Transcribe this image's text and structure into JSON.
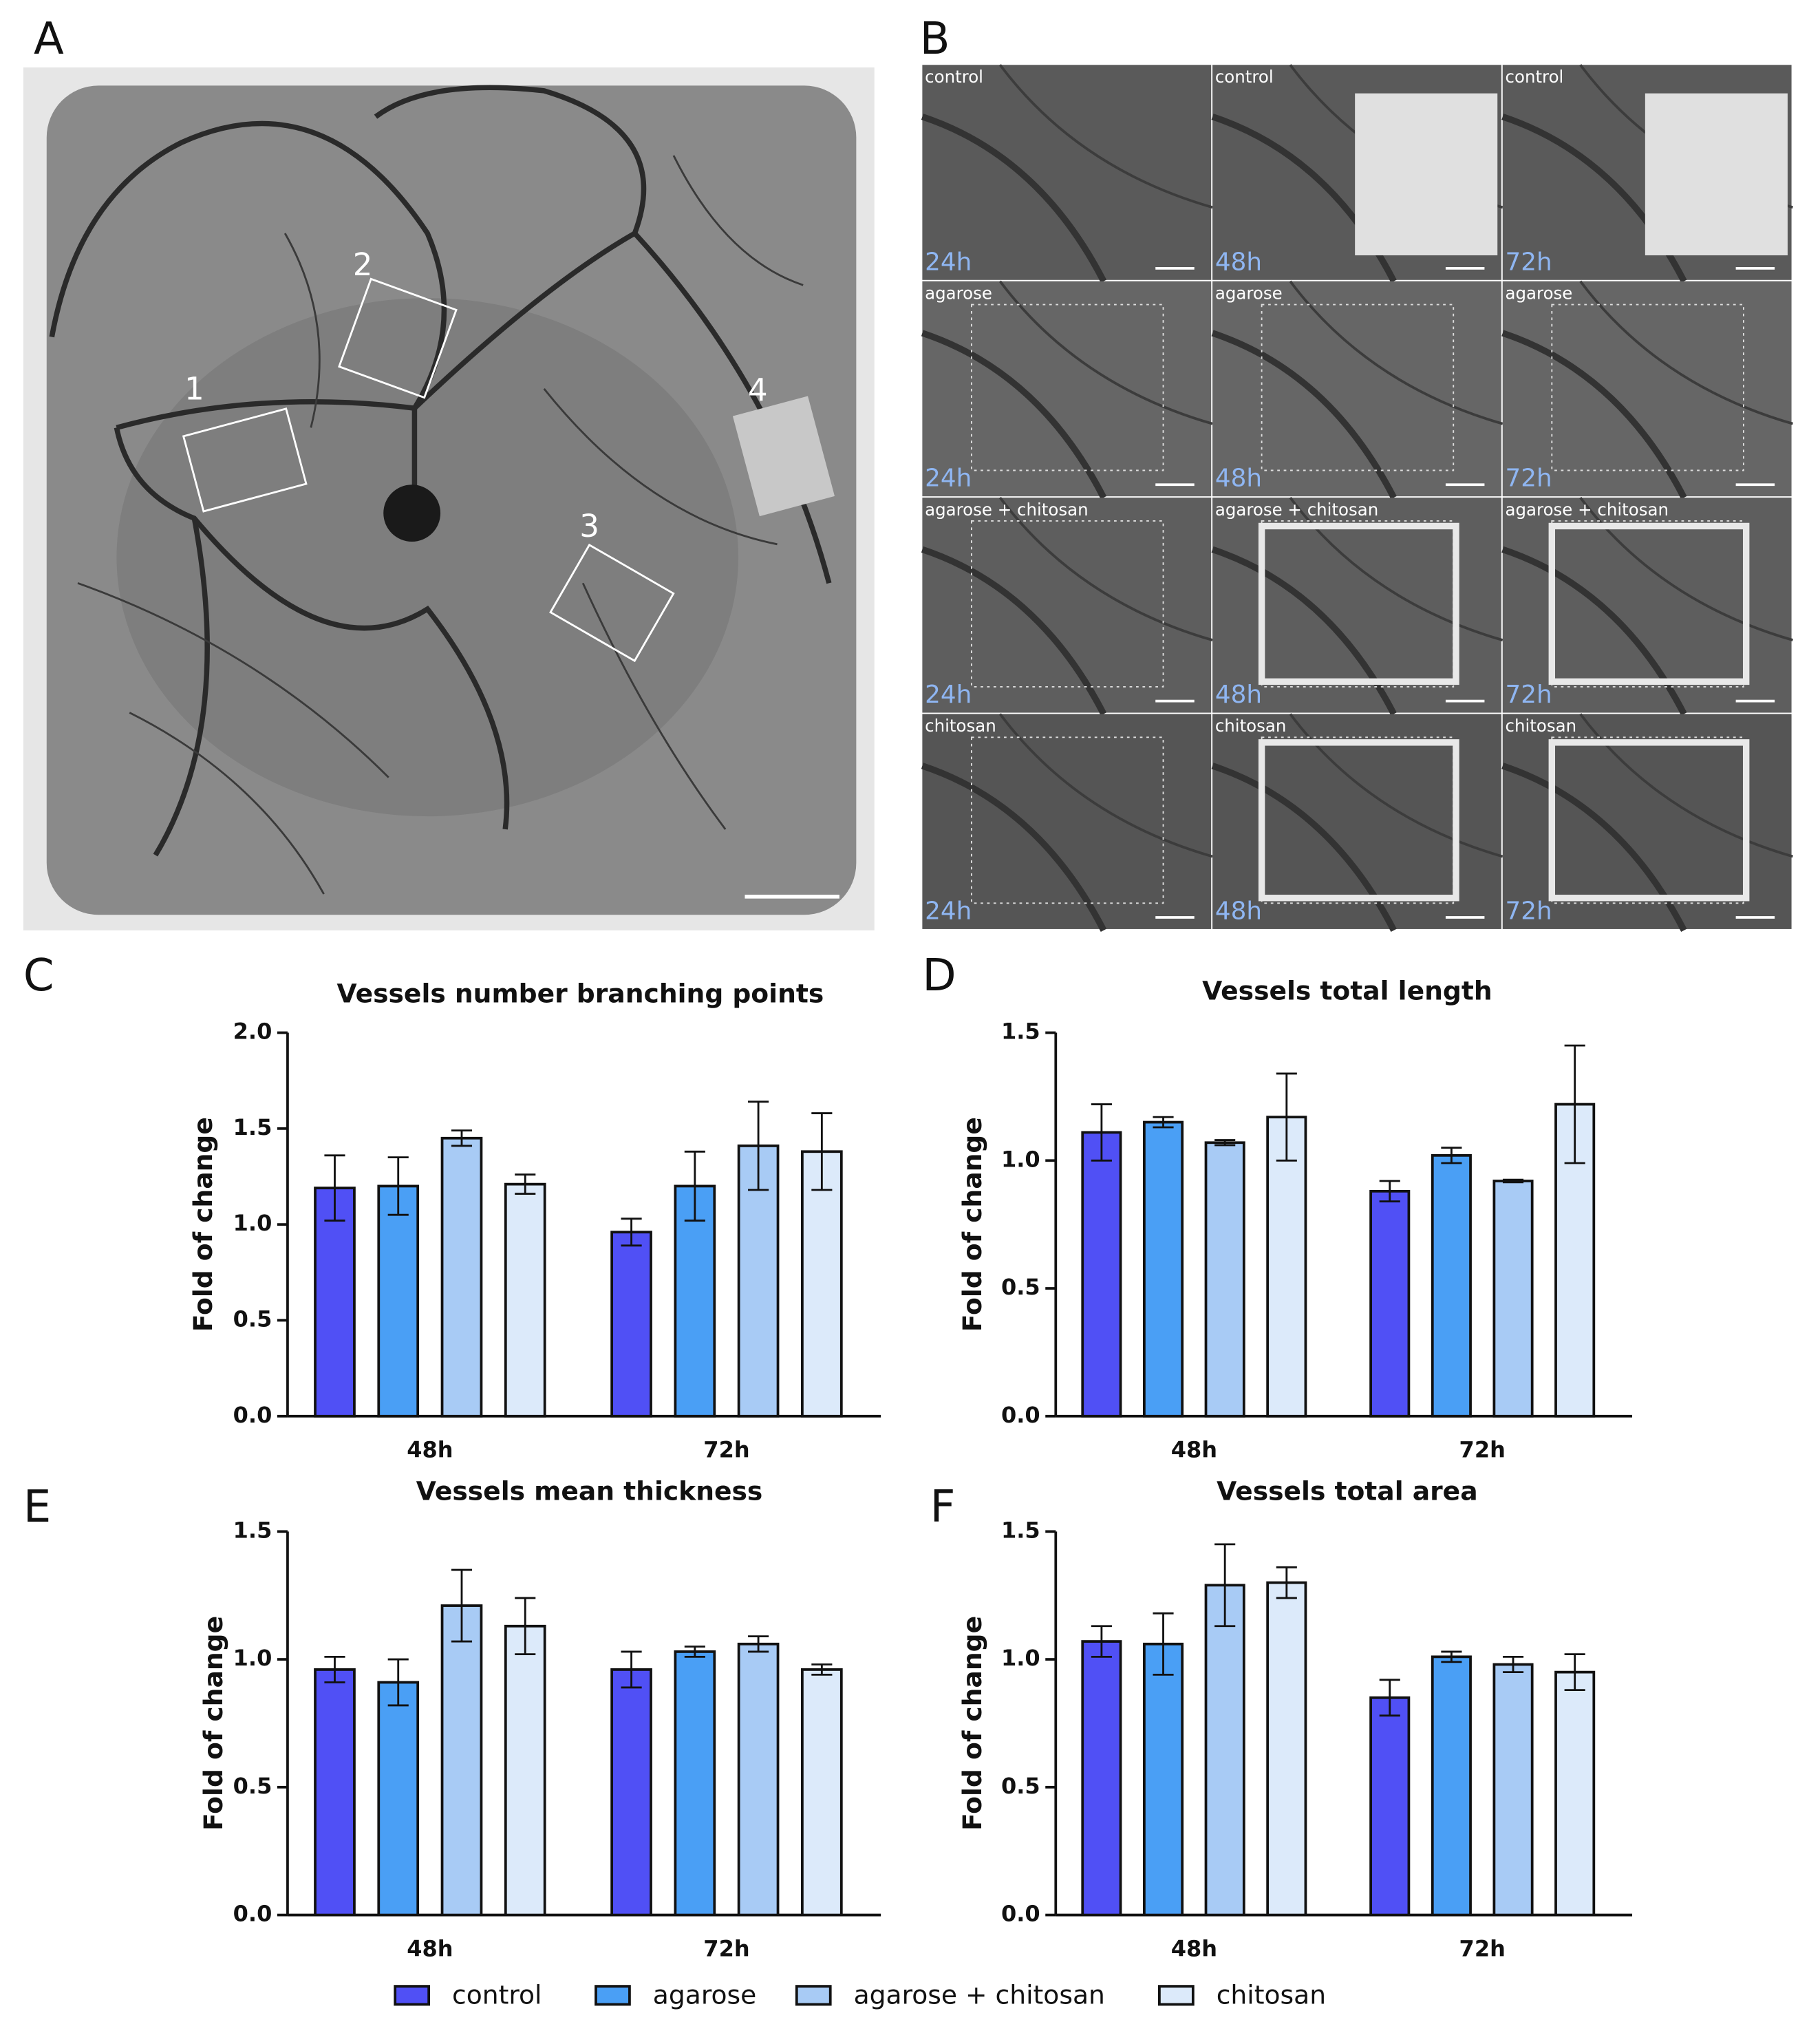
{
  "panel_labels": [
    "A",
    "B",
    "C",
    "D",
    "E",
    "F"
  ],
  "photo_a": {
    "region_labels": [
      "1",
      "2",
      "3",
      "4"
    ]
  },
  "photo_b": {
    "treatments": [
      "control",
      "agarose",
      "agarose + chitosan",
      "chitosan"
    ],
    "times": [
      "24h",
      "48h",
      "72h"
    ]
  },
  "legend": [
    {
      "name": "control",
      "color": "#5050f5"
    },
    {
      "name": "agarose",
      "color": "#4a9ff5"
    },
    {
      "name": "agarose + chitosan",
      "color": "#a8cbf5"
    },
    {
      "name": "chitosan",
      "color": "#dceafa"
    }
  ],
  "chart_data": [
    {
      "type": "bar",
      "title": "Vessels number branching points",
      "ylabel": "Fold of change",
      "categories": [
        "48h",
        "72h"
      ],
      "ylim": [
        0,
        2
      ],
      "yticks": [
        {
          "value": 0,
          "label": "0.0"
        },
        {
          "value": 0.5,
          "label": "0.5"
        },
        {
          "value": 1,
          "label": "1.0"
        },
        {
          "value": 1.5,
          "label": "1.5"
        },
        {
          "value": 2,
          "label": "2.0"
        }
      ],
      "series": [
        {
          "values": [
            1.19,
            0.96
          ],
          "errors": [
            0.17,
            0.07
          ]
        },
        {
          "values": [
            1.2,
            1.2
          ],
          "errors": [
            0.15,
            0.18
          ]
        },
        {
          "values": [
            1.45,
            1.41
          ],
          "errors": [
            0.04,
            0.23
          ]
        },
        {
          "values": [
            1.21,
            1.38
          ],
          "errors": [
            0.05,
            0.2
          ]
        }
      ]
    },
    {
      "type": "bar",
      "title": "Vessels total length",
      "ylabel": "Fold of change",
      "categories": [
        "48h",
        "72h"
      ],
      "ylim": [
        0,
        1.5
      ],
      "yticks": [
        {
          "value": 0,
          "label": "0.0"
        },
        {
          "value": 0.5,
          "label": "0.5"
        },
        {
          "value": 1,
          "label": "1.0"
        },
        {
          "value": 1.5,
          "label": "1.5"
        }
      ],
      "series": [
        {
          "values": [
            1.11,
            0.88
          ],
          "errors": [
            0.11,
            0.04
          ]
        },
        {
          "values": [
            1.15,
            1.02
          ],
          "errors": [
            0.02,
            0.03
          ]
        },
        {
          "values": [
            1.07,
            0.92
          ],
          "errors": [
            0.01,
            0.005
          ]
        },
        {
          "values": [
            1.17,
            1.22
          ],
          "errors": [
            0.17,
            0.23
          ]
        }
      ]
    },
    {
      "type": "bar",
      "title": "Vessels mean thickness",
      "ylabel": "Fold of change",
      "categories": [
        "48h",
        "72h"
      ],
      "ylim": [
        0,
        1.5
      ],
      "yticks": [
        {
          "value": 0,
          "label": "0.0"
        },
        {
          "value": 0.5,
          "label": "0.5"
        },
        {
          "value": 1,
          "label": "1.0"
        },
        {
          "value": 1.5,
          "label": "1.5"
        }
      ],
      "series": [
        {
          "values": [
            0.96,
            0.96
          ],
          "errors": [
            0.05,
            0.07
          ]
        },
        {
          "values": [
            0.91,
            1.03
          ],
          "errors": [
            0.09,
            0.02
          ]
        },
        {
          "values": [
            1.21,
            1.06
          ],
          "errors": [
            0.14,
            0.03
          ]
        },
        {
          "values": [
            1.13,
            0.96
          ],
          "errors": [
            0.11,
            0.02
          ]
        }
      ]
    },
    {
      "type": "bar",
      "title": "Vessels total area",
      "ylabel": "Fold of change",
      "categories": [
        "48h",
        "72h"
      ],
      "ylim": [
        0,
        1.5
      ],
      "yticks": [
        {
          "value": 0,
          "label": "0.0"
        },
        {
          "value": 0.5,
          "label": "0.5"
        },
        {
          "value": 1,
          "label": "1.0"
        },
        {
          "value": 1.5,
          "label": "1.5"
        }
      ],
      "series": [
        {
          "values": [
            1.07,
            0.85
          ],
          "errors": [
            0.06,
            0.07
          ]
        },
        {
          "values": [
            1.06,
            1.01
          ],
          "errors": [
            0.12,
            0.02
          ]
        },
        {
          "values": [
            1.29,
            0.98
          ],
          "errors": [
            0.16,
            0.03
          ]
        },
        {
          "values": [
            1.3,
            0.95
          ],
          "errors": [
            0.06,
            0.07
          ]
        }
      ]
    }
  ]
}
